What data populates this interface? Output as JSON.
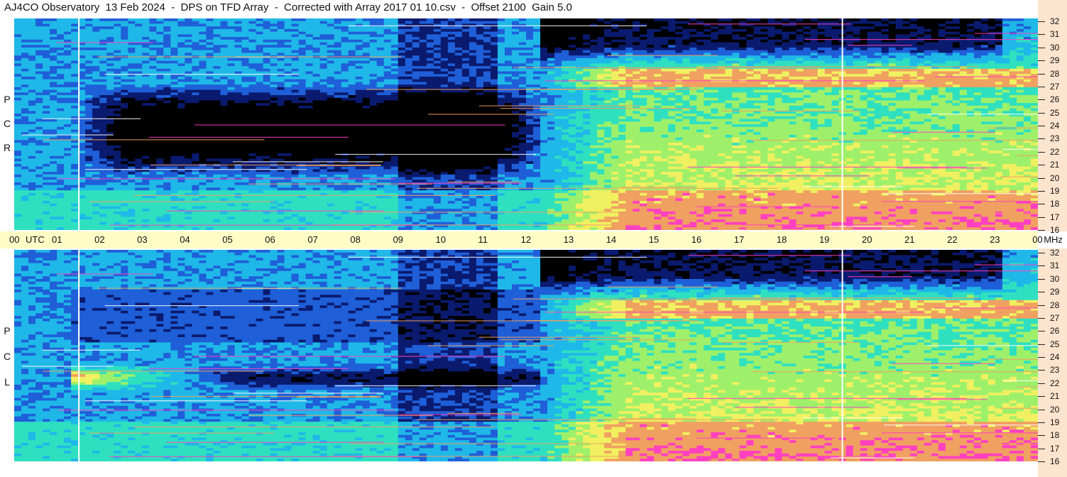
{
  "header": {
    "title": "AJ4CO Observatory  13 Feb 2024  -  DPS on TFD Array  -  Corrected with Array 2017 01 10.csv  -  Offset 2100  Gain 5.0"
  },
  "panels": {
    "top_label": [
      "R",
      "C",
      "P"
    ],
    "bottom_label": [
      "L",
      "C",
      "P"
    ]
  },
  "colors": {
    "time_axis_bg": "#fefdc6",
    "freq_axis_bg": "#fde4cf"
  },
  "chart_data": {
    "type": "heatmap",
    "title": "AJ4CO Observatory  13 Feb 2024  -  DPS on TFD Array  -  Corrected with Array 2017 01 10.csv  -  Offset 2100  Gain 5.0",
    "x_axis": {
      "unit_label": "UTC",
      "tick_labels": [
        "00",
        "01",
        "02",
        "03",
        "04",
        "05",
        "06",
        "07",
        "08",
        "09",
        "10",
        "11",
        "12",
        "13",
        "14",
        "15",
        "16",
        "17",
        "18",
        "19",
        "20",
        "21",
        "22",
        "23",
        "00"
      ],
      "range_hours": [
        0,
        24
      ]
    },
    "y_axis": {
      "unit_label": "MHz",
      "tick_labels": [
        "32",
        "31",
        "30",
        "29",
        "28",
        "27",
        "26",
        "25",
        "24",
        "23",
        "22",
        "21",
        "20",
        "19",
        "18",
        "17",
        "16"
      ],
      "range_mhz": [
        16,
        32
      ]
    },
    "series": [
      {
        "name": "RCP"
      },
      {
        "name": "LCP"
      }
    ],
    "colormap": [
      "#000000",
      "#0a1a6e",
      "#1f5fd8",
      "#1fb8e8",
      "#2ee0c0",
      "#9ef06a",
      "#f0f060",
      "#f0a060",
      "#ff40c0",
      "#ffffff"
    ]
  }
}
